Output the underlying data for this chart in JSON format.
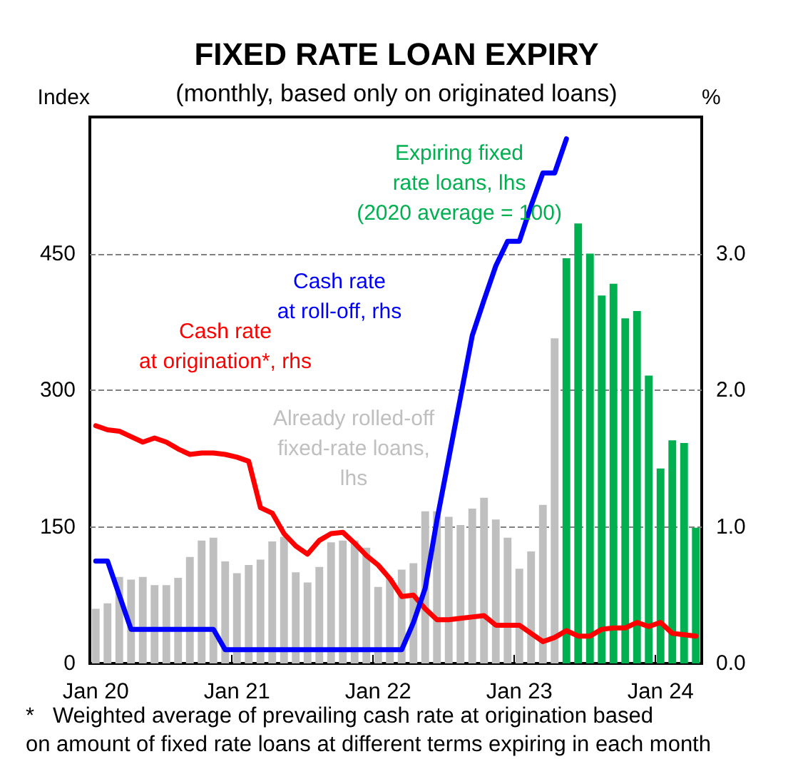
{
  "chart_data": {
    "type": "bar",
    "title": "FIXED RATE LOAN EXPIRY",
    "subtitle": "(monthly, based only on originated loans)",
    "ylabel": "Index",
    "y2label": "%",
    "categories": [
      "Jan 20",
      null,
      null,
      null,
      null,
      null,
      null,
      null,
      null,
      null,
      null,
      null,
      "Jan 21",
      null,
      null,
      null,
      null,
      null,
      null,
      null,
      null,
      null,
      null,
      null,
      "Jan 22",
      null,
      null,
      null,
      null,
      null,
      null,
      null,
      null,
      null,
      null,
      null,
      "Jan 23",
      null,
      null,
      null,
      null,
      null,
      null,
      null,
      null,
      null,
      null,
      null,
      "Jan 24",
      null,
      null,
      null
    ],
    "series": [
      {
        "name": "Already rolled-off\nfixed-rate loans,\nlhs",
        "color": "#bfbfbf",
        "values": [
          60,
          66,
          95,
          92,
          95,
          86,
          86,
          94,
          117,
          135,
          138,
          112,
          99,
          108,
          114,
          134,
          139,
          100,
          89,
          106,
          133,
          135,
          135,
          127,
          84,
          94,
          103,
          110,
          167,
          167,
          161,
          152,
          170,
          182,
          158,
          138,
          104,
          123,
          174,
          357,
          null,
          null,
          null,
          null,
          null,
          null,
          null,
          null,
          null,
          null,
          null,
          null
        ]
      },
      {
        "name": "Expiring fixed\nrate loans, lhs\n(2020 average = 100)",
        "color": "#00b050",
        "values": [
          null,
          null,
          null,
          null,
          null,
          null,
          null,
          null,
          null,
          null,
          null,
          null,
          null,
          null,
          null,
          null,
          null,
          null,
          null,
          null,
          null,
          null,
          null,
          null,
          null,
          null,
          null,
          null,
          null,
          null,
          null,
          null,
          null,
          null,
          null,
          null,
          null,
          null,
          null,
          null,
          445,
          483,
          450,
          404,
          417,
          379,
          387,
          316,
          214,
          245,
          242,
          149
        ]
      },
      {
        "name": "Cash rate\nat origination*, rhs",
        "type": "line",
        "axis": "y2",
        "color": "#ff0000",
        "values": [
          1.74,
          1.71,
          1.7,
          1.66,
          1.62,
          1.65,
          1.62,
          1.57,
          1.53,
          1.54,
          1.54,
          1.53,
          1.51,
          1.48,
          1.14,
          1.1,
          0.95,
          0.86,
          0.8,
          0.9,
          0.95,
          0.96,
          0.88,
          0.79,
          0.72,
          0.62,
          0.49,
          0.5,
          0.4,
          0.32,
          0.32,
          0.33,
          0.34,
          0.35,
          0.28,
          0.28,
          0.28,
          0.22,
          0.16,
          0.19,
          0.24,
          0.2,
          0.2,
          0.25,
          0.26,
          0.26,
          0.3,
          0.27,
          0.3,
          0.22,
          0.21,
          0.2
        ]
      },
      {
        "name": "Cash rate\nat roll-off, rhs",
        "type": "line",
        "axis": "y2",
        "color": "#0000ff",
        "values": [
          0.75,
          0.75,
          0.5,
          0.25,
          0.25,
          0.25,
          0.25,
          0.25,
          0.25,
          0.25,
          0.25,
          0.1,
          0.1,
          0.1,
          0.1,
          0.1,
          0.1,
          0.1,
          0.1,
          0.1,
          0.1,
          0.1,
          0.1,
          0.1,
          0.1,
          0.1,
          0.1,
          0.3,
          0.55,
          1.05,
          1.5,
          1.95,
          2.4,
          2.66,
          2.91,
          3.09,
          3.09,
          3.35,
          3.59,
          3.59,
          3.84,
          null,
          null,
          null,
          null,
          null,
          null,
          null,
          null,
          null,
          null,
          null
        ]
      }
    ],
    "ylim": [
      0,
      600
    ],
    "yticks": [
      0,
      150,
      300,
      450
    ],
    "y2lim": [
      0,
      4
    ],
    "y2ticks": [
      {
        "value": 0,
        "label": "0.0"
      },
      {
        "value": 1,
        "label": "1.0"
      },
      {
        "value": 2,
        "label": "2.0"
      },
      {
        "value": 3,
        "label": "3.0"
      }
    ],
    "grid": "y",
    "legend": false,
    "marker": "none",
    "line_style": "solid",
    "annotations": [
      "*   Weighted average of prevailing cash rate at origination based\non amount of fixed rate loans at different terms expiring in each month"
    ]
  }
}
